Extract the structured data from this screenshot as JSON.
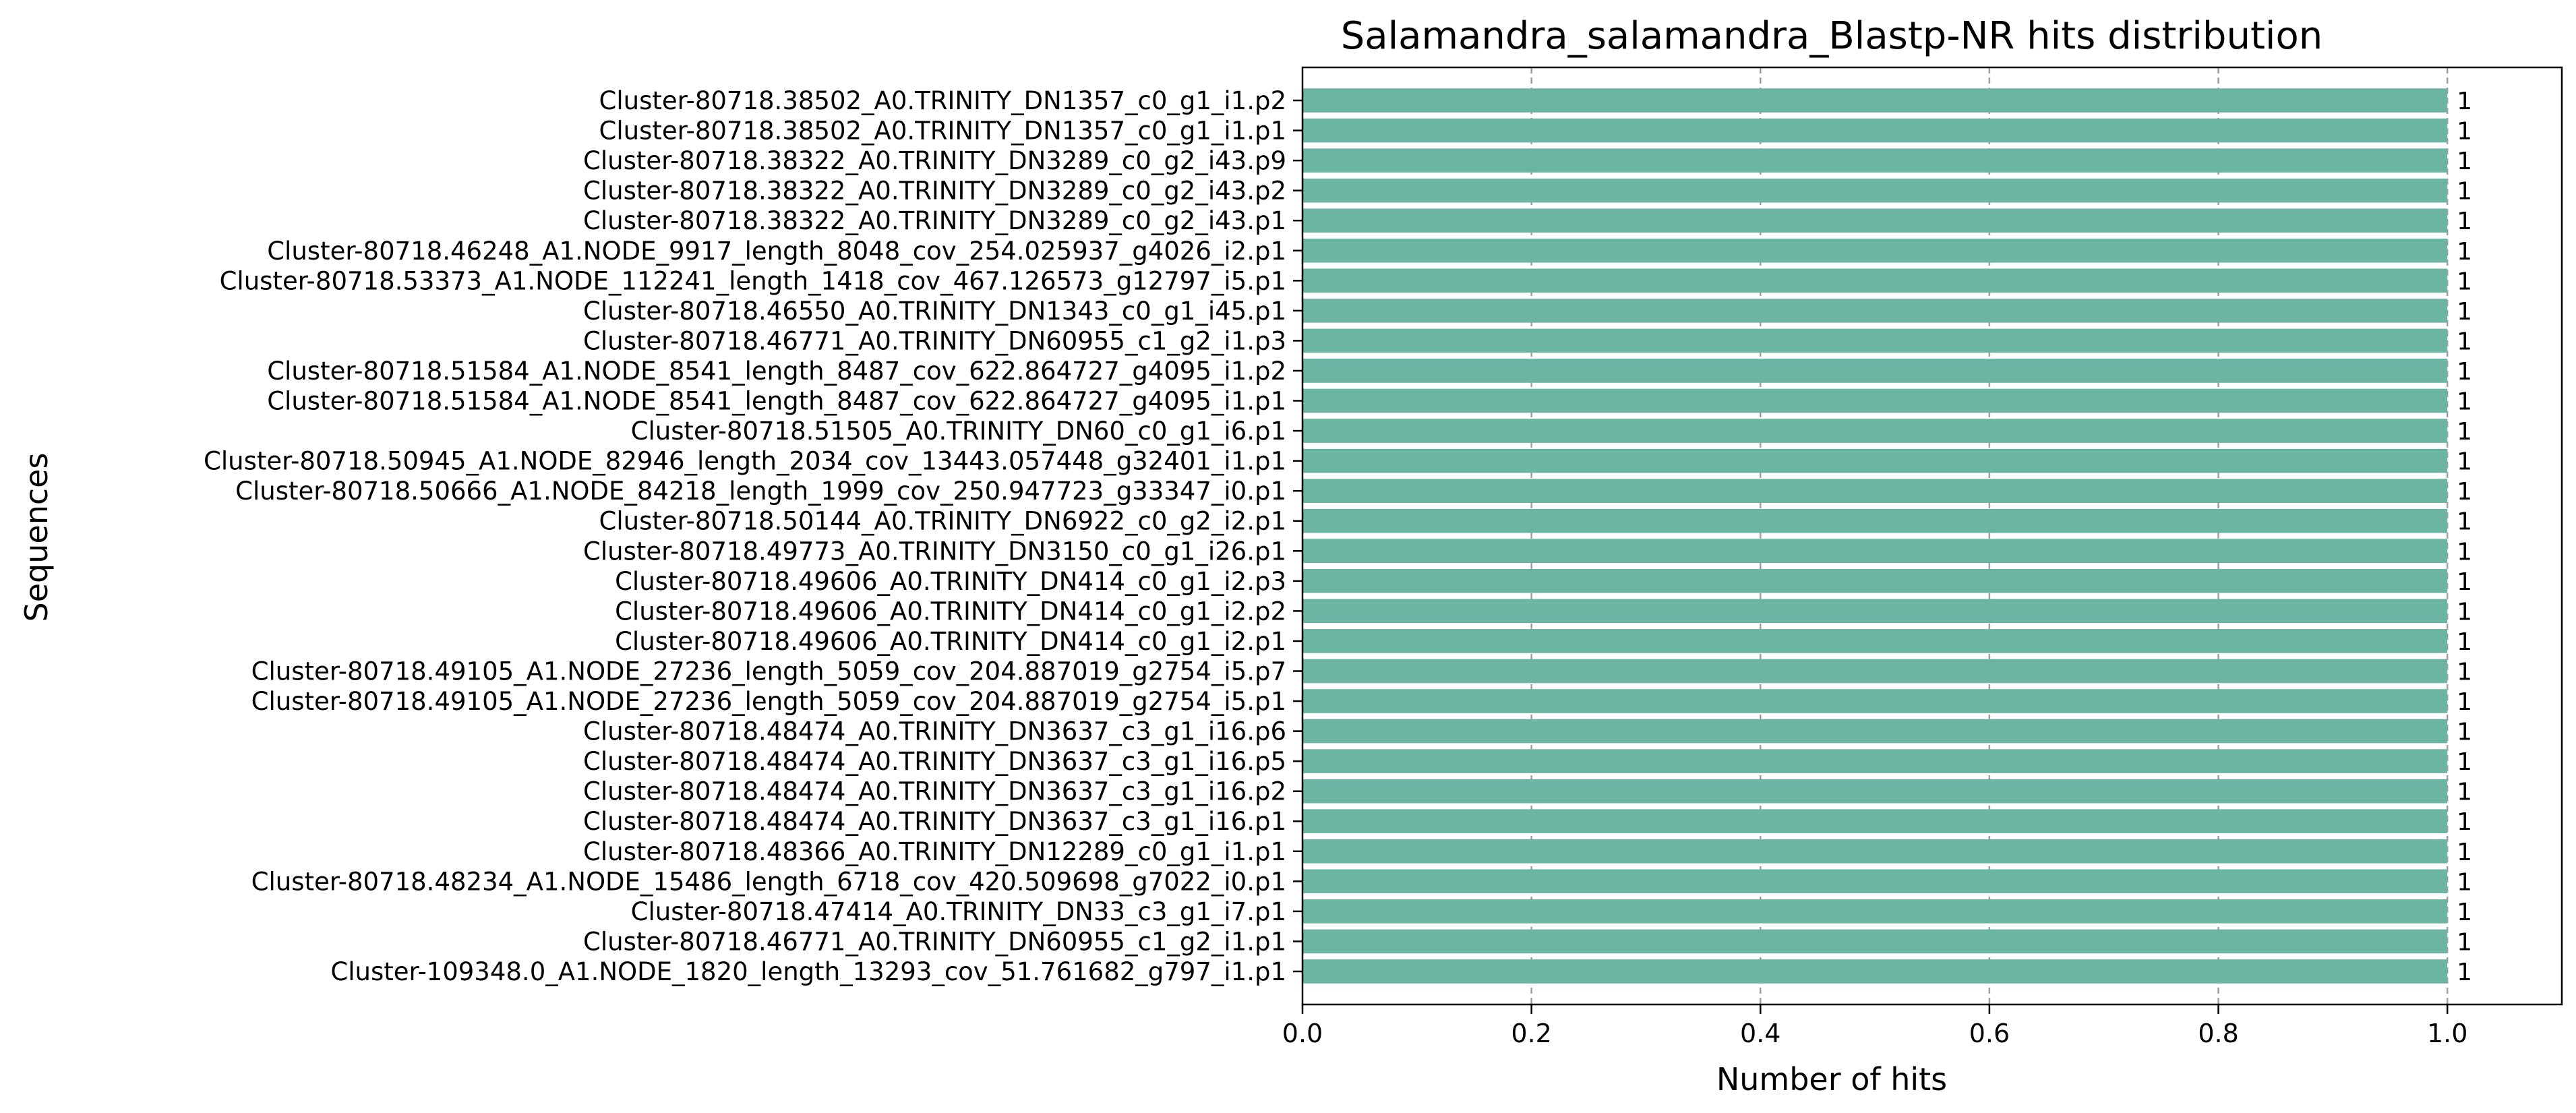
{
  "chart_data": {
    "type": "bar",
    "orientation": "horizontal",
    "title": "Salamandra_salamandra_Blastp-NR hits distribution",
    "xlabel": "Number of hits",
    "ylabel": "Sequences",
    "xlim": [
      0,
      1.1
    ],
    "xticks": [
      "0.0",
      "0.2",
      "0.4",
      "0.6",
      "0.8",
      "1.0"
    ],
    "grid": "x-dashed",
    "bar_color": "#6bb5a2",
    "categories": [
      "Cluster-80718.38502_A0.TRINITY_DN1357_c0_g1_i1.p2",
      "Cluster-80718.38502_A0.TRINITY_DN1357_c0_g1_i1.p1",
      "Cluster-80718.38322_A0.TRINITY_DN3289_c0_g2_i43.p9",
      "Cluster-80718.38322_A0.TRINITY_DN3289_c0_g2_i43.p2",
      "Cluster-80718.38322_A0.TRINITY_DN3289_c0_g2_i43.p1",
      "Cluster-80718.46248_A1.NODE_9917_length_8048_cov_254.025937_g4026_i2.p1",
      "Cluster-80718.53373_A1.NODE_112241_length_1418_cov_467.126573_g12797_i5.p1",
      "Cluster-80718.46550_A0.TRINITY_DN1343_c0_g1_i45.p1",
      "Cluster-80718.46771_A0.TRINITY_DN60955_c1_g2_i1.p3",
      "Cluster-80718.51584_A1.NODE_8541_length_8487_cov_622.864727_g4095_i1.p2",
      "Cluster-80718.51584_A1.NODE_8541_length_8487_cov_622.864727_g4095_i1.p1",
      "Cluster-80718.51505_A0.TRINITY_DN60_c0_g1_i6.p1",
      "Cluster-80718.50945_A1.NODE_82946_length_2034_cov_13443.057448_g32401_i1.p1",
      "Cluster-80718.50666_A1.NODE_84218_length_1999_cov_250.947723_g33347_i0.p1",
      "Cluster-80718.50144_A0.TRINITY_DN6922_c0_g2_i2.p1",
      "Cluster-80718.49773_A0.TRINITY_DN3150_c0_g1_i26.p1",
      "Cluster-80718.49606_A0.TRINITY_DN414_c0_g1_i2.p3",
      "Cluster-80718.49606_A0.TRINITY_DN414_c0_g1_i2.p2",
      "Cluster-80718.49606_A0.TRINITY_DN414_c0_g1_i2.p1",
      "Cluster-80718.49105_A1.NODE_27236_length_5059_cov_204.887019_g2754_i5.p7",
      "Cluster-80718.49105_A1.NODE_27236_length_5059_cov_204.887019_g2754_i5.p1",
      "Cluster-80718.48474_A0.TRINITY_DN3637_c3_g1_i16.p6",
      "Cluster-80718.48474_A0.TRINITY_DN3637_c3_g1_i16.p5",
      "Cluster-80718.48474_A0.TRINITY_DN3637_c3_g1_i16.p2",
      "Cluster-80718.48474_A0.TRINITY_DN3637_c3_g1_i16.p1",
      "Cluster-80718.48366_A0.TRINITY_DN12289_c0_g1_i1.p1",
      "Cluster-80718.48234_A1.NODE_15486_length_6718_cov_420.509698_g7022_i0.p1",
      "Cluster-80718.47414_A0.TRINITY_DN33_c3_g1_i7.p1",
      "Cluster-80718.46771_A0.TRINITY_DN60955_c1_g2_i1.p1",
      "Cluster-109348.0_A1.NODE_1820_length_13293_cov_51.761682_g797_i1.p1"
    ],
    "values": [
      1,
      1,
      1,
      1,
      1,
      1,
      1,
      1,
      1,
      1,
      1,
      1,
      1,
      1,
      1,
      1,
      1,
      1,
      1,
      1,
      1,
      1,
      1,
      1,
      1,
      1,
      1,
      1,
      1,
      1
    ],
    "data_labels": [
      "1",
      "1",
      "1",
      "1",
      "1",
      "1",
      "1",
      "1",
      "1",
      "1",
      "1",
      "1",
      "1",
      "1",
      "1",
      "1",
      "1",
      "1",
      "1",
      "1",
      "1",
      "1",
      "1",
      "1",
      "1",
      "1",
      "1",
      "1",
      "1",
      "1"
    ]
  }
}
